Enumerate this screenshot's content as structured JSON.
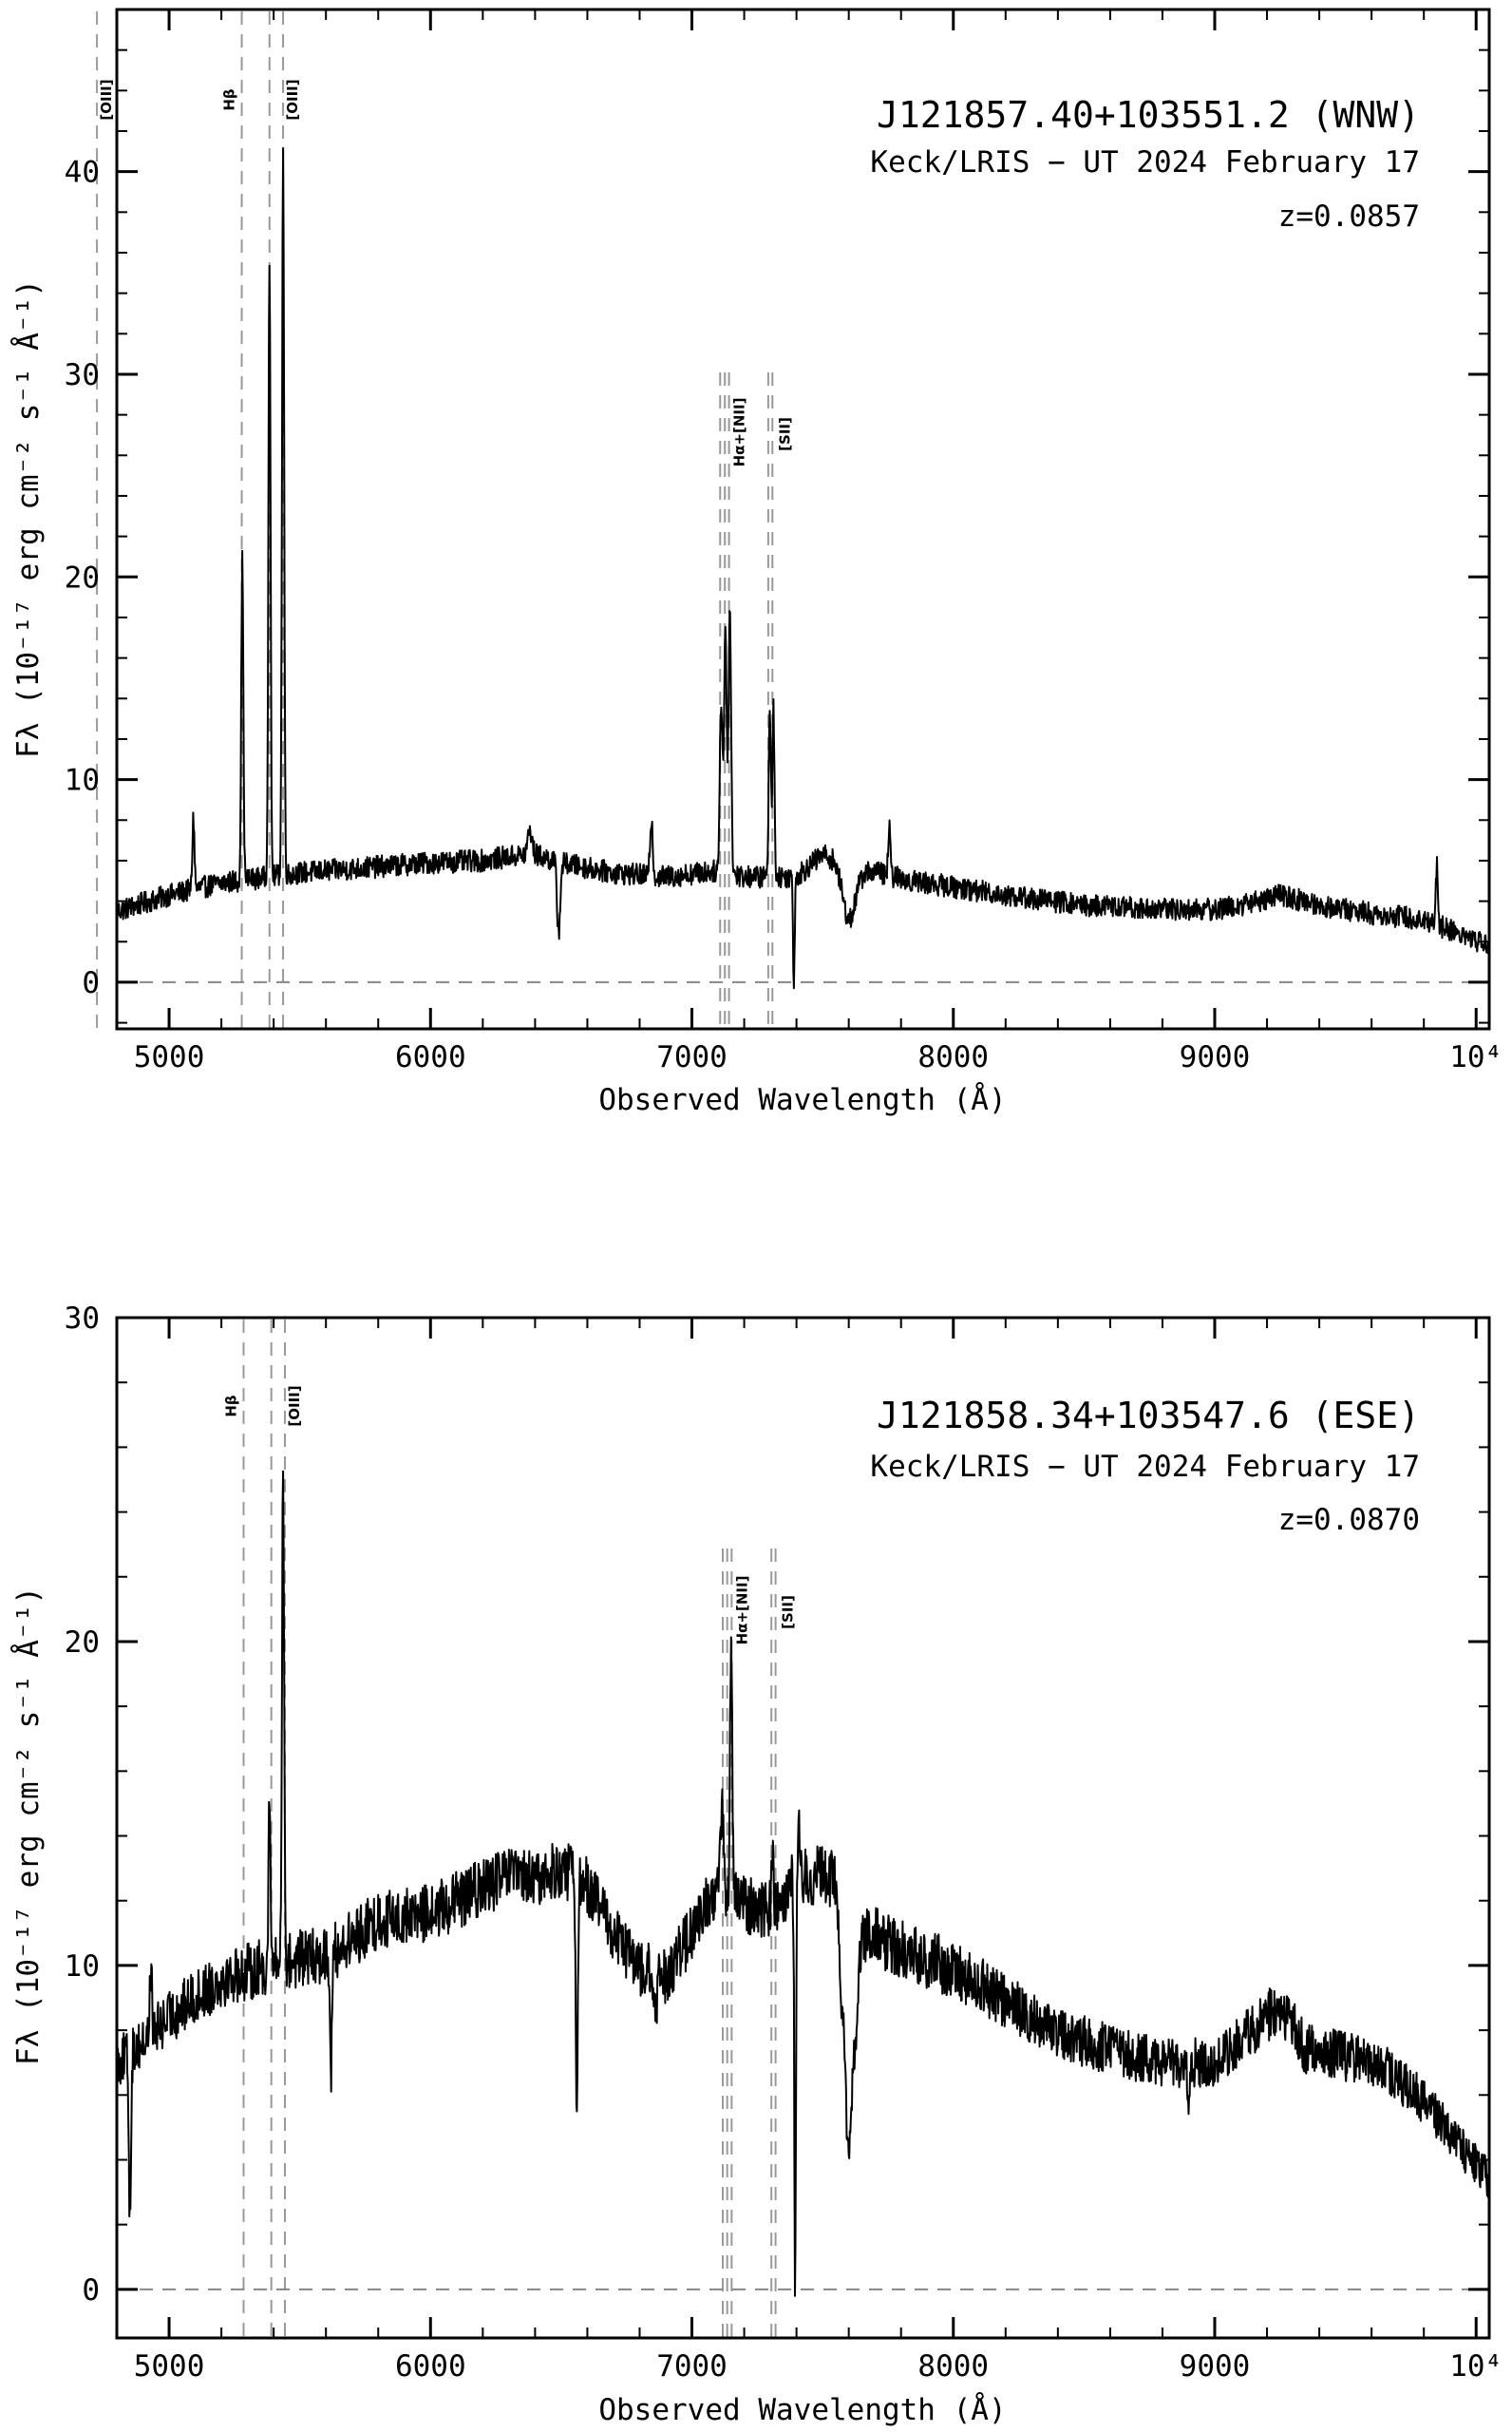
{
  "chart_data": [
    {
      "type": "line",
      "title": "J121857.40+103551.2 (WNW)",
      "subtitle": "Keck/LRIS − UT 2024 February 17",
      "redshift_label": "z=0.0857",
      "xlabel": "Observed Wavelength (Å)",
      "ylabel": "Fλ (10⁻¹⁷ erg cm⁻² s⁻¹ Å⁻¹)",
      "xlim": [
        4800,
        10050
      ],
      "ylim": [
        -2.3,
        48
      ],
      "xticks": [
        5000,
        6000,
        7000,
        8000,
        9000,
        10000
      ],
      "xtick_labels": [
        "5000",
        "6000",
        "7000",
        "8000",
        "9000",
        "10⁴"
      ],
      "yticks": [
        0,
        10,
        20,
        30,
        40
      ],
      "ytick_labels": [
        "0",
        "10",
        "20",
        "30",
        "40"
      ],
      "zero_line": 0,
      "line_markers": [
        {
          "label": "[OIII]",
          "wavelengths": [
            4724
          ]
        },
        {
          "label": "Hβ",
          "wavelengths": [
            5278
          ]
        },
        {
          "label": "[OIII]",
          "wavelengths": [
            5384,
            5436
          ]
        },
        {
          "label": "Hα+[NII]",
          "wavelengths": [
            7108,
            7126,
            7142
          ]
        },
        {
          "label": "[SII]",
          "wavelengths": [
            7292,
            7308
          ]
        }
      ],
      "continuum": [
        [
          4800,
          3.5
        ],
        [
          5000,
          4.3
        ],
        [
          5200,
          4.9
        ],
        [
          5500,
          5.4
        ],
        [
          5800,
          5.7
        ],
        [
          6000,
          5.9
        ],
        [
          6200,
          6.0
        ],
        [
          6300,
          6.2
        ],
        [
          6400,
          6.3
        ],
        [
          6500,
          5.9
        ],
        [
          6700,
          5.4
        ],
        [
          6900,
          5.2
        ],
        [
          7100,
          5.5
        ],
        [
          7200,
          5.2
        ],
        [
          7300,
          5.2
        ],
        [
          7400,
          5.2
        ],
        [
          7500,
          6.3
        ],
        [
          7550,
          6.1
        ],
        [
          7600,
          5.4
        ],
        [
          7700,
          5.5
        ],
        [
          7800,
          5.1
        ],
        [
          8000,
          4.7
        ],
        [
          8200,
          4.3
        ],
        [
          8500,
          3.8
        ],
        [
          8800,
          3.6
        ],
        [
          9000,
          3.6
        ],
        [
          9100,
          3.8
        ],
        [
          9250,
          4.3
        ],
        [
          9400,
          3.8
        ],
        [
          9600,
          3.4
        ],
        [
          9800,
          3.1
        ],
        [
          10050,
          1.8
        ]
      ],
      "features": [
        {
          "x": 5093,
          "y": 8.1,
          "w": 4
        },
        {
          "x": 5280,
          "y": 20.8,
          "w": 4
        },
        {
          "x": 5384,
          "y": 35.9,
          "w": 4
        },
        {
          "x": 5436,
          "y": 41.0,
          "w": 4
        },
        {
          "x": 6380,
          "y": 7.5,
          "w": 8
        },
        {
          "x": 6490,
          "y": 2.5,
          "w": 6
        },
        {
          "x": 6845,
          "y": 8.1,
          "w": 5
        },
        {
          "x": 7112,
          "y": 14.0,
          "w": 5
        },
        {
          "x": 7128,
          "y": 17.3,
          "w": 5
        },
        {
          "x": 7145,
          "y": 18.3,
          "w": 5
        },
        {
          "x": 7298,
          "y": 13.8,
          "w": 4
        },
        {
          "x": 7312,
          "y": 13.5,
          "w": 4
        },
        {
          "x": 7390,
          "y": 0.0,
          "w": 3
        },
        {
          "x": 7600,
          "y": 3.1,
          "w": 25
        },
        {
          "x": 7755,
          "y": 7.6,
          "w": 4
        },
        {
          "x": 9850,
          "y": 5.8,
          "w": 4
        }
      ]
    },
    {
      "type": "line",
      "title": "J121858.34+103547.6 (ESE)",
      "subtitle": "Keck/LRIS − UT 2024 February 17",
      "redshift_label": "z=0.0870",
      "xlabel": "Observed Wavelength (Å)",
      "ylabel": "Fλ (10⁻¹⁷ erg cm⁻² s⁻¹ Å⁻¹)",
      "xlim": [
        4800,
        10050
      ],
      "ylim": [
        -1.5,
        30
      ],
      "xticks": [
        5000,
        6000,
        7000,
        8000,
        9000,
        10000
      ],
      "xtick_labels": [
        "5000",
        "6000",
        "7000",
        "8000",
        "9000",
        "10⁴"
      ],
      "yticks": [
        0,
        10,
        20,
        30
      ],
      "ytick_labels": [
        "0",
        "10",
        "20",
        "30"
      ],
      "zero_line": 0,
      "line_markers": [
        {
          "label": "Hβ",
          "wavelengths": [
            5285
          ]
        },
        {
          "label": "[OIII]",
          "wavelengths": [
            5391,
            5443
          ]
        },
        {
          "label": "Hα+[NII]",
          "wavelengths": [
            7118,
            7135,
            7152
          ]
        },
        {
          "label": "[SII]",
          "wavelengths": [
            7304,
            7320
          ]
        }
      ],
      "continuum": [
        [
          4800,
          7.0
        ],
        [
          4900,
          7.6
        ],
        [
          5000,
          8.4
        ],
        [
          5100,
          9.0
        ],
        [
          5200,
          9.6
        ],
        [
          5300,
          9.8
        ],
        [
          5400,
          10.0
        ],
        [
          5500,
          10.2
        ],
        [
          5600,
          10.3
        ],
        [
          5700,
          10.8
        ],
        [
          5800,
          11.4
        ],
        [
          6000,
          11.6
        ],
        [
          6100,
          12.0
        ],
        [
          6200,
          12.4
        ],
        [
          6300,
          12.8
        ],
        [
          6400,
          12.6
        ],
        [
          6500,
          13.0
        ],
        [
          6600,
          12.5
        ],
        [
          6700,
          11.0
        ],
        [
          6800,
          9.9
        ],
        [
          6900,
          9.7
        ],
        [
          7000,
          11.0
        ],
        [
          7100,
          12.5
        ],
        [
          7200,
          11.9
        ],
        [
          7300,
          11.7
        ],
        [
          7400,
          12.7
        ],
        [
          7500,
          12.8
        ],
        [
          7550,
          12.6
        ],
        [
          7600,
          5.0
        ],
        [
          7650,
          10.8
        ],
        [
          7700,
          10.9
        ],
        [
          7800,
          10.5
        ],
        [
          8000,
          9.9
        ],
        [
          8200,
          8.9
        ],
        [
          8400,
          7.9
        ],
        [
          8600,
          7.4
        ],
        [
          8800,
          7.0
        ],
        [
          9000,
          7.0
        ],
        [
          9150,
          8.0
        ],
        [
          9250,
          8.8
        ],
        [
          9350,
          7.4
        ],
        [
          9500,
          7.2
        ],
        [
          9650,
          6.8
        ],
        [
          9800,
          5.8
        ],
        [
          9950,
          4.3
        ],
        [
          10050,
          3.4
        ]
      ],
      "features": [
        {
          "x": 4850,
          "y": 2.3,
          "w": 4
        },
        {
          "x": 4930,
          "y": 10.0,
          "w": 4
        },
        {
          "x": 5384,
          "y": 15.0,
          "w": 4
        },
        {
          "x": 5436,
          "y": 25.6,
          "w": 4
        },
        {
          "x": 5620,
          "y": 6.9,
          "w": 4
        },
        {
          "x": 6560,
          "y": 5.7,
          "w": 4
        },
        {
          "x": 6860,
          "y": 8.5,
          "w": 8
        },
        {
          "x": 7115,
          "y": 15.0,
          "w": 5
        },
        {
          "x": 7150,
          "y": 20.1,
          "w": 4
        },
        {
          "x": 7308,
          "y": 13.7,
          "w": 4
        },
        {
          "x": 7395,
          "y": -0.1,
          "w": 3
        },
        {
          "x": 7408,
          "y": 14.3,
          "w": 3
        },
        {
          "x": 7600,
          "y": 3.9,
          "w": 12
        },
        {
          "x": 8900,
          "y": 5.4,
          "w": 4
        }
      ]
    }
  ]
}
